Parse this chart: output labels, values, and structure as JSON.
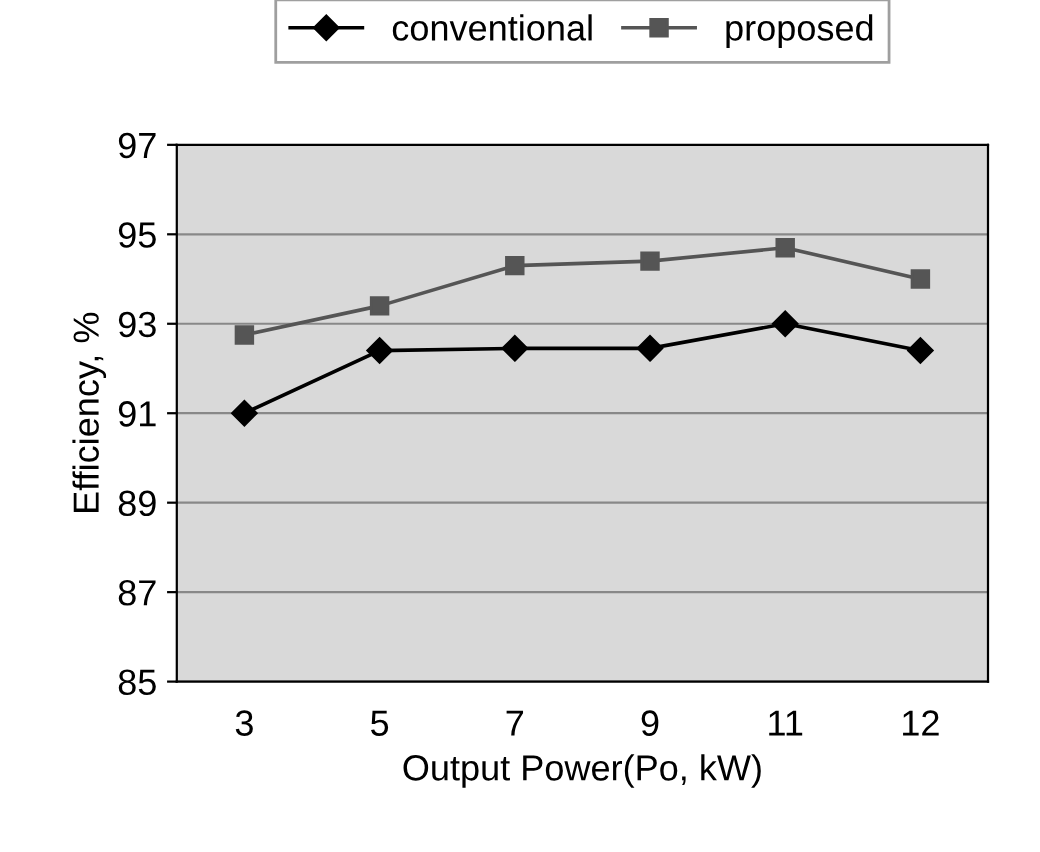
{
  "chart_data": {
    "type": "line",
    "xlabel": "Output Power(Po, kW)",
    "ylabel": "Efficiency, %",
    "categories": [
      "3",
      "5",
      "7",
      "9",
      "11",
      "12"
    ],
    "series": [
      {
        "name": "conventional",
        "color": "#000000",
        "marker": "diamond",
        "values": [
          91.0,
          92.4,
          92.45,
          92.45,
          93.0,
          92.4
        ]
      },
      {
        "name": "proposed",
        "color": "#555555",
        "marker": "square",
        "values": [
          92.75,
          93.4,
          94.3,
          94.4,
          94.7,
          94.0
        ]
      }
    ],
    "ylim": [
      85,
      97
    ],
    "yticks": [
      85,
      87,
      89,
      91,
      93,
      95,
      97
    ],
    "grid": "y",
    "legend": "top"
  }
}
